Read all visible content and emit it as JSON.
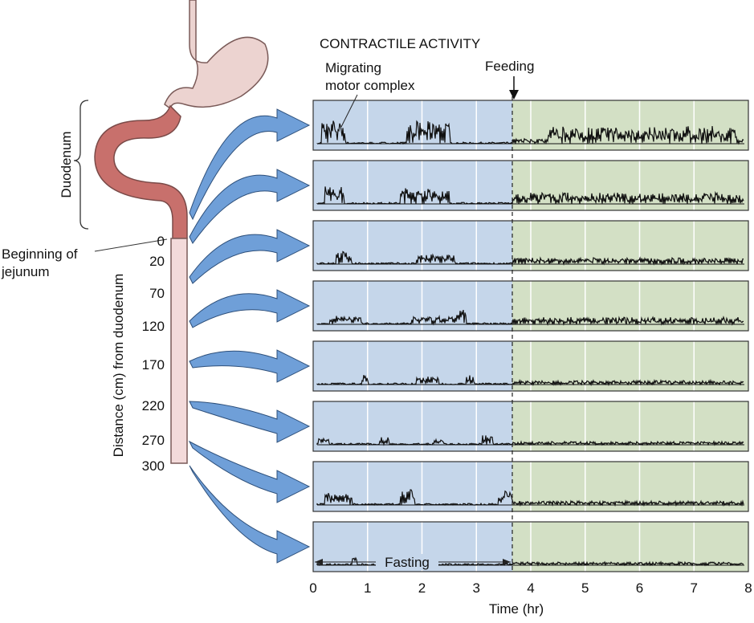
{
  "header": {
    "title": "CONTRACTILE ACTIVITY"
  },
  "annotations": {
    "mmc": [
      "Migrating",
      "motor complex"
    ],
    "feeding": "Feeding",
    "fasting": "Fasting"
  },
  "anatomy": {
    "duodenum": "Duodenum",
    "jejunum": [
      "Beginning of",
      "jejunum"
    ],
    "distance_title": "Distance (cm) from duodenum",
    "distance_labels": [
      "0",
      "20",
      "70",
      "120",
      "170",
      "220",
      "270",
      "300"
    ]
  },
  "time_axis": {
    "label": "Time (hr)",
    "ticks": [
      0,
      1,
      2,
      3,
      4,
      5,
      6,
      7,
      8
    ]
  }
}
